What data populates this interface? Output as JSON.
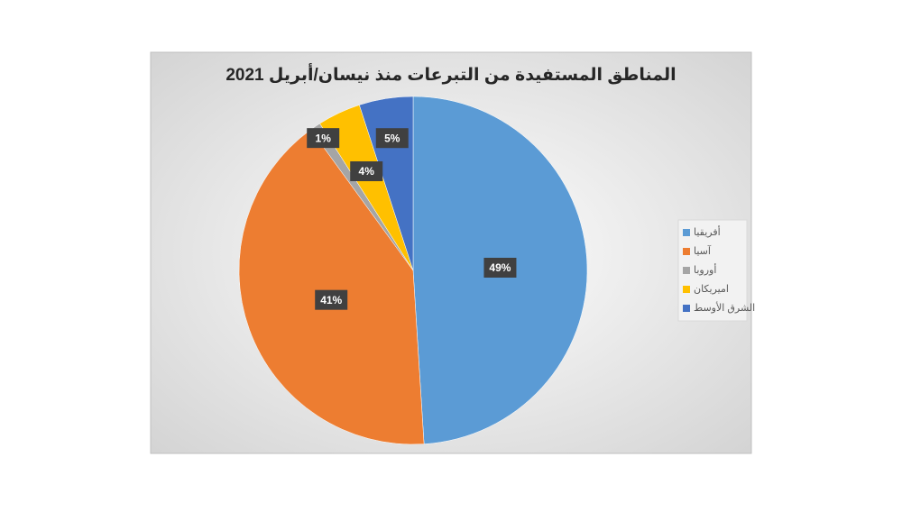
{
  "chart_data": {
    "type": "pie",
    "title": "المناطق المستفيدة من التبرعات منذ نيسان/أبريل 2021",
    "categories": [
      "أفريقيا",
      "آسيا",
      "أوروبا",
      "اميريكان",
      "الشرق الأوسط"
    ],
    "values": [
      49,
      41,
      1,
      4,
      5
    ],
    "value_labels": [
      "49%",
      "41%",
      "1%",
      "4%",
      "5%"
    ],
    "colors": [
      "#5b9bd5",
      "#ed7d31",
      "#a5a5a5",
      "#ffc000",
      "#4472c4"
    ],
    "legend": "right"
  }
}
